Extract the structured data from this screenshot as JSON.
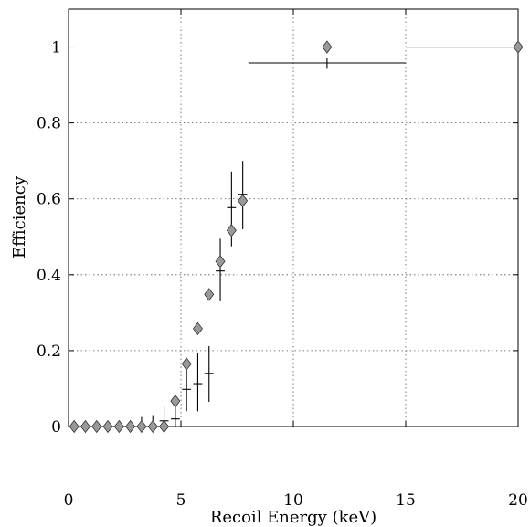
{
  "chart_data": {
    "type": "scatter",
    "xlabel": "Recoil Energy (keV)",
    "ylabel": "Efficiency",
    "xlim": [
      0,
      20
    ],
    "ylim": [
      0,
      1.1
    ],
    "xticks": [
      0,
      5,
      10,
      15,
      20
    ],
    "yticks": [
      0,
      0.2,
      0.4,
      0.6,
      0.8,
      1
    ],
    "xtick_labels": [
      "0",
      "5",
      "10",
      "15",
      "20"
    ],
    "ytick_labels": [
      "0",
      "0.2",
      "0.4",
      "0.6",
      "0.8",
      "1"
    ],
    "grid": true,
    "series": [
      {
        "marker": "diamond",
        "color": "#999999",
        "points": [
          {
            "x": 0.25,
            "y": 0.0
          },
          {
            "x": 0.75,
            "y": 0.0
          },
          {
            "x": 1.25,
            "y": 0.0
          },
          {
            "x": 1.75,
            "y": 0.0
          },
          {
            "x": 2.25,
            "y": 0.0
          },
          {
            "x": 2.75,
            "y": 0.0
          },
          {
            "x": 3.25,
            "y": 0.0
          },
          {
            "x": 3.75,
            "y": 0.0
          },
          {
            "x": 4.25,
            "y": 0.0
          },
          {
            "x": 4.75,
            "y": 0.067
          },
          {
            "x": 5.25,
            "y": 0.165
          },
          {
            "x": 5.75,
            "y": 0.258
          },
          {
            "x": 6.25,
            "y": 0.348
          },
          {
            "x": 6.75,
            "y": 0.435
          },
          {
            "x": 7.25,
            "y": 0.517
          },
          {
            "x": 7.75,
            "y": 0.595
          },
          {
            "x": 11.5,
            "y": 1.0
          },
          {
            "x": 20.0,
            "y": 1.0
          }
        ]
      },
      {
        "marker": "errorbar-cross",
        "color": "#000000",
        "points": [
          {
            "x": 3.25,
            "y": 0.0,
            "xerr": 0.1,
            "ylo": 0.0,
            "yhi": 0.025
          },
          {
            "x": 3.75,
            "y": 0.0,
            "xerr": 0.1,
            "ylo": 0.0,
            "yhi": 0.03
          },
          {
            "x": 4.25,
            "y": 0.015,
            "xerr": 0.2,
            "ylo": 0.0,
            "yhi": 0.055
          },
          {
            "x": 4.75,
            "y": 0.02,
            "xerr": 0.2,
            "ylo": 0.0,
            "yhi": 0.06
          },
          {
            "x": 5.25,
            "y": 0.098,
            "xerr": 0.2,
            "ylo": 0.04,
            "yhi": 0.16
          },
          {
            "x": 5.75,
            "y": 0.113,
            "xerr": 0.2,
            "ylo": 0.04,
            "yhi": 0.195
          },
          {
            "x": 6.25,
            "y": 0.14,
            "xerr": 0.2,
            "ylo": 0.065,
            "yhi": 0.212
          },
          {
            "x": 6.75,
            "y": 0.41,
            "xerr": 0.2,
            "ylo": 0.33,
            "yhi": 0.495
          },
          {
            "x": 7.25,
            "y": 0.577,
            "xerr": 0.2,
            "ylo": 0.475,
            "yhi": 0.672
          },
          {
            "x": 7.75,
            "y": 0.612,
            "xerr": 0.2,
            "ylo": 0.52,
            "yhi": 0.7
          },
          {
            "x": 11.5,
            "y": 0.958,
            "xerr_lo": 3.5,
            "xerr_hi": 3.5,
            "ylo": 0.945,
            "yhi": 0.97
          },
          {
            "x": 17.5,
            "y": 1.0,
            "xerr_lo": 2.5,
            "xerr_hi": 2.5,
            "ylo": 1.0,
            "yhi": 1.0
          }
        ]
      }
    ]
  }
}
